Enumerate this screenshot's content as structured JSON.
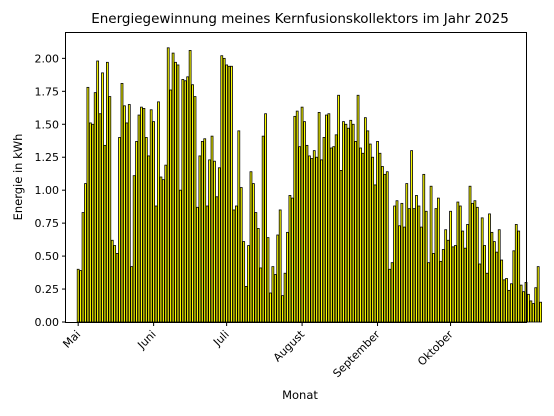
{
  "chart_data": {
    "type": "bar",
    "title": "Energiegewinnung meines Kernfusionskollektors im Jahr 2025",
    "xlabel": "Monat",
    "ylabel": "Energie in kWh",
    "x_start_date": "2025-04-26",
    "x_end_date": "2025-11-01",
    "ylim": [
      0,
      2.2
    ],
    "yticks": [
      "0.00",
      "0.25",
      "0.50",
      "0.75",
      "1.00",
      "1.25",
      "1.50",
      "1.75",
      "2.00"
    ],
    "xticks": [
      {
        "date": "2025-05-01",
        "label": "Mai"
      },
      {
        "date": "2025-06-01",
        "label": "Juni"
      },
      {
        "date": "2025-07-01",
        "label": "Juli"
      },
      {
        "date": "2025-08-01",
        "label": "August"
      },
      {
        "date": "2025-09-01",
        "label": "September"
      },
      {
        "date": "2025-10-01",
        "label": "Oktober"
      }
    ],
    "bar_color": "#ffff00",
    "bar_edge_color": "#000000",
    "grid": false,
    "series": [
      {
        "start_date": "2025-05-01",
        "values": [
          0.4,
          0.39,
          0.83,
          1.05,
          1.78,
          1.51,
          1.5,
          1.74,
          1.98,
          1.58,
          1.89,
          1.34,
          1.97,
          1.71,
          0.62,
          0.58,
          0.52,
          1.4,
          1.81,
          1.64,
          1.51,
          1.65,
          0.42,
          1.11,
          1.37,
          1.57,
          1.63,
          1.62,
          1.4,
          1.26,
          1.61,
          1.52,
          0.88,
          1.67,
          1.1,
          1.08,
          1.19,
          2.08,
          1.76,
          2.04,
          1.97,
          1.95,
          1.0,
          1.84,
          1.83,
          1.86,
          2.06,
          1.8,
          1.71,
          0.87,
          1.26,
          1.37,
          1.39,
          0.88,
          1.23,
          1.41,
          1.22,
          0.95,
          1.17,
          2.02,
          2.0,
          1.95,
          1.94,
          1.94,
          0.85,
          0.88,
          1.45,
          1.02,
          0.61,
          0.27,
          0.58,
          1.14,
          1.05,
          0.83,
          0.71,
          0.41,
          1.41,
          1.58,
          0.64,
          0.22,
          0.42,
          0.36,
          0.66,
          0.85,
          0.2,
          0.37,
          0.68,
          0.96,
          0.94,
          1.56,
          1.6,
          1.33,
          1.63,
          1.52,
          1.34,
          1.26,
          1.24,
          1.3,
          1.25,
          1.59,
          1.23,
          1.4,
          1.57,
          1.58,
          1.32,
          1.33,
          1.42,
          1.72,
          1.15,
          1.52,
          1.5,
          1.47,
          1.53,
          1.5,
          1.37,
          1.72,
          1.32,
          1.28,
          1.55,
          1.45,
          1.35,
          1.25,
          1.04,
          1.37,
          1.28,
          1.18,
          1.12,
          1.14,
          0.4,
          0.45,
          0.88,
          0.92,
          0.73,
          0.9,
          0.72,
          1.05,
          0.86,
          1.3,
          0.86,
          0.96,
          0.88,
          0.72,
          1.12,
          0.84,
          0.45,
          1.03,
          0.52,
          0.86,
          0.94,
          0.46,
          0.55,
          0.7,
          0.62,
          0.84,
          0.57,
          0.58,
          0.91,
          0.88,
          0.69,
          0.56,
          0.74,
          1.03,
          0.9,
          0.92,
          0.87,
          0.44,
          0.79,
          0.58,
          0.37,
          0.82,
          0.68,
          0.61,
          0.53,
          0.7,
          0.47,
          0.32,
          0.33,
          0.24,
          0.29,
          0.54,
          0.74,
          0.69,
          0.28,
          0.23,
          0.3,
          0.21,
          0.16,
          0.14,
          0.26,
          0.42,
          0.15
        ]
      }
    ]
  }
}
